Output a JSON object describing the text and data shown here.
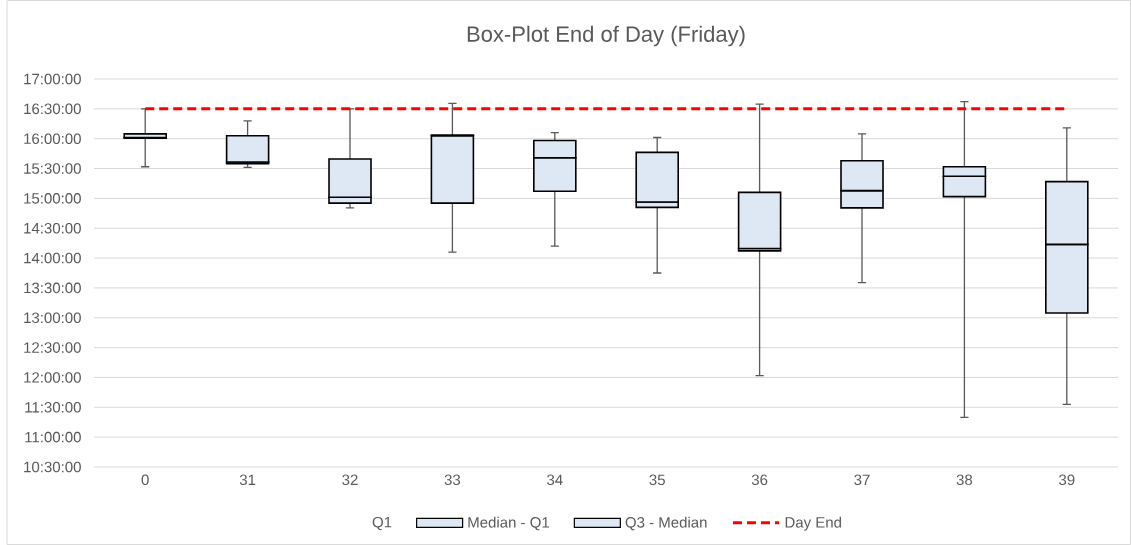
{
  "chart_data": {
    "type": "box",
    "title": "Box-Plot End of Day (Friday)",
    "categories": [
      "0",
      "31",
      "32",
      "33",
      "34",
      "35",
      "36",
      "37",
      "38",
      "39"
    ],
    "boxes": [
      {
        "low": 15.53,
        "q1": 16.01,
        "median": 16.02,
        "q3": 16.08,
        "high": 16.5
      },
      {
        "low": 15.52,
        "q1": 15.58,
        "median": 15.61,
        "q3": 16.05,
        "high": 16.3
      },
      {
        "low": 14.84,
        "q1": 14.92,
        "median": 15.02,
        "q3": 15.66,
        "high": 16.5
      },
      {
        "low": 14.1,
        "q1": 14.92,
        "median": 16.05,
        "q3": 16.06,
        "high": 16.59
      },
      {
        "low": 14.2,
        "q1": 15.12,
        "median": 15.68,
        "q3": 15.97,
        "high": 16.1
      },
      {
        "low": 13.75,
        "q1": 14.85,
        "median": 14.94,
        "q3": 15.77,
        "high": 16.02
      },
      {
        "low": 12.03,
        "q1": 14.12,
        "median": 14.16,
        "q3": 15.1,
        "high": 16.58
      },
      {
        "low": 13.59,
        "q1": 14.84,
        "median": 15.13,
        "q3": 15.63,
        "high": 16.08
      },
      {
        "low": 11.33,
        "q1": 15.03,
        "median": 15.37,
        "q3": 15.53,
        "high": 16.62
      },
      {
        "low": 11.55,
        "q1": 13.08,
        "median": 14.23,
        "q3": 15.28,
        "high": 16.18
      }
    ],
    "series": [
      {
        "name": "Q1",
        "values": [
          null,
          null,
          null,
          null,
          null,
          null,
          null,
          null,
          null,
          null
        ]
      },
      {
        "name": "Median - Q1",
        "color": "#dee8f4",
        "values": [
          null,
          null,
          null,
          null,
          null,
          null,
          null,
          null,
          null,
          null
        ]
      },
      {
        "name": "Q3 - Median",
        "color": "#dee8f4",
        "values": [
          null,
          null,
          null,
          null,
          null,
          null,
          null,
          null,
          null,
          null
        ]
      },
      {
        "name": "Day End",
        "type": "line",
        "color": "#ff0000",
        "line_style": "dashed",
        "values": [
          16.5,
          16.5,
          16.5,
          16.5,
          16.5,
          16.5,
          16.5,
          16.5,
          16.5,
          16.5
        ]
      }
    ],
    "ylim": [
      10.5,
      17
    ],
    "yticks": [
      {
        "value": 10.5,
        "label": "10:30:00"
      },
      {
        "value": 11,
        "label": "11:00:00"
      },
      {
        "value": 11.5,
        "label": "11:30:00"
      },
      {
        "value": 12,
        "label": "12:00:00"
      },
      {
        "value": 12.5,
        "label": "12:30:00"
      },
      {
        "value": 13,
        "label": "13:00:00"
      },
      {
        "value": 13.5,
        "label": "13:30:00"
      },
      {
        "value": 14,
        "label": "14:00:00"
      },
      {
        "value": 14.5,
        "label": "14:30:00"
      },
      {
        "value": 15,
        "label": "15:00:00"
      },
      {
        "value": 15.5,
        "label": "15:30:00"
      },
      {
        "value": 16,
        "label": "16:00:00"
      },
      {
        "value": 16.5,
        "label": "16:30:00"
      },
      {
        "value": 17,
        "label": "17:00:00"
      }
    ],
    "grid": "y",
    "legend": "bottom"
  }
}
